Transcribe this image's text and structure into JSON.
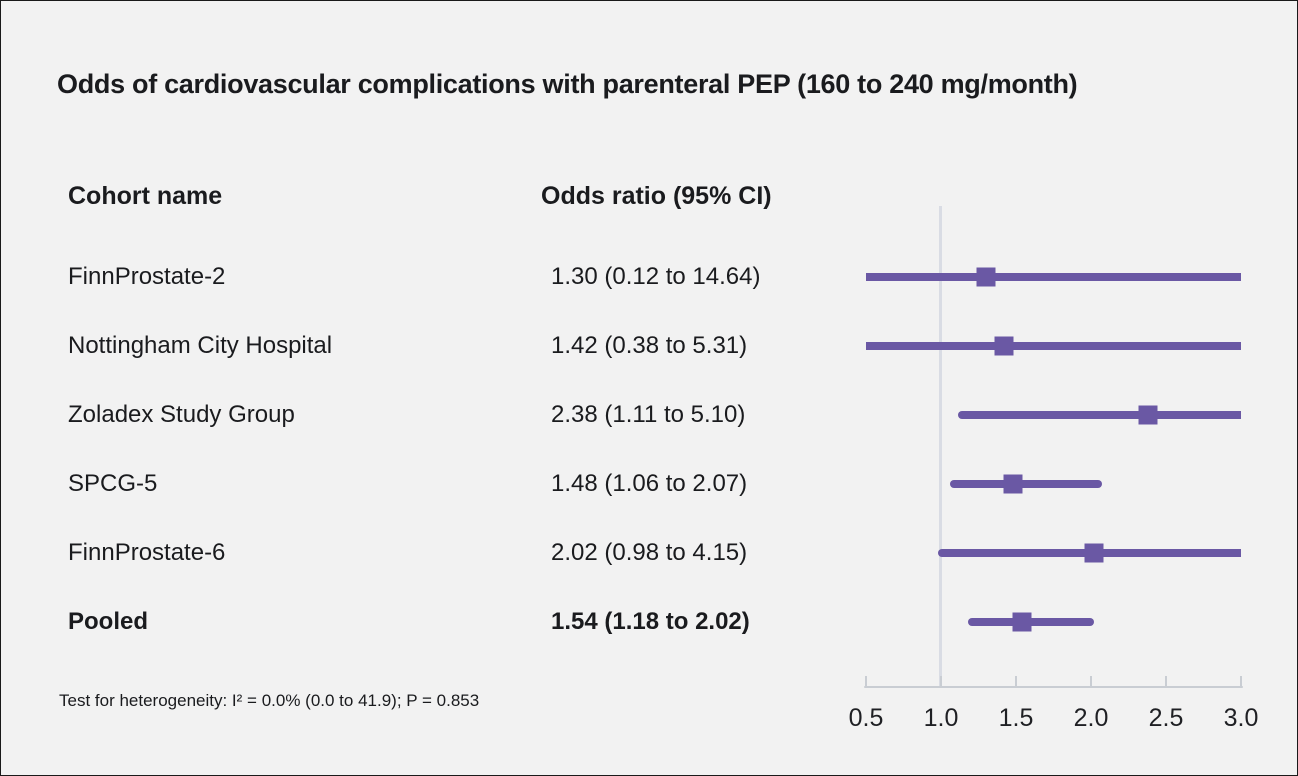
{
  "title": "Odds of cardiovascular complications with parenteral PEP (160 to 240 mg/month)",
  "columns": {
    "cohort": "Cohort name",
    "odds": "Odds ratio (95% CI)"
  },
  "footnote": "Test for heterogeneity: I² = 0.0% (0.0 to 41.9); P = 0.853",
  "colors": {
    "background": "#f2f2f2",
    "marker_purple": "#6a58a4",
    "reference_line": "#d9dce4",
    "axis": "#c9cdd3",
    "text": "#1a1b1e"
  },
  "chart_data": {
    "type": "forest",
    "title": "Odds of cardiovascular complications with parenteral PEP (160 to 240 mg/month)",
    "xlabel": "",
    "ylabel": "",
    "x_axis": {
      "scale": "linear",
      "min": 0.5,
      "max": 3.0,
      "tick_values": [
        0.5,
        1.0,
        1.5,
        2.0,
        2.5,
        3.0
      ],
      "tick_labels": [
        "0.5",
        "1.0",
        "1.5",
        "2.0",
        "2.5",
        "3.0"
      ],
      "reference_value": 1.0
    },
    "rows": [
      {
        "name": "FinnProstate-2",
        "label": "1.30 (0.12 to 14.64)",
        "est": 1.3,
        "lo": 0.12,
        "hi": 14.64,
        "pooled": false
      },
      {
        "name": "Nottingham City Hospital",
        "label": "1.42 (0.38 to 5.31)",
        "est": 1.42,
        "lo": 0.38,
        "hi": 5.31,
        "pooled": false
      },
      {
        "name": "Zoladex Study Group",
        "label": "2.38 (1.11 to 5.10)",
        "est": 2.38,
        "lo": 1.11,
        "hi": 5.1,
        "pooled": false
      },
      {
        "name": "SPCG-5",
        "label": "1.48 (1.06 to 2.07)",
        "est": 1.48,
        "lo": 1.06,
        "hi": 2.07,
        "pooled": false
      },
      {
        "name": "FinnProstate-6",
        "label": "2.02 (0.98 to 4.15)",
        "est": 2.02,
        "lo": 0.98,
        "hi": 4.15,
        "pooled": false
      },
      {
        "name": "Pooled",
        "label": "1.54 (1.18 to 2.02)",
        "est": 1.54,
        "lo": 1.18,
        "hi": 2.02,
        "pooled": true
      }
    ],
    "heterogeneity_note": "Test for heterogeneity: I² = 0.0% (0.0 to 41.9); P = 0.853"
  }
}
